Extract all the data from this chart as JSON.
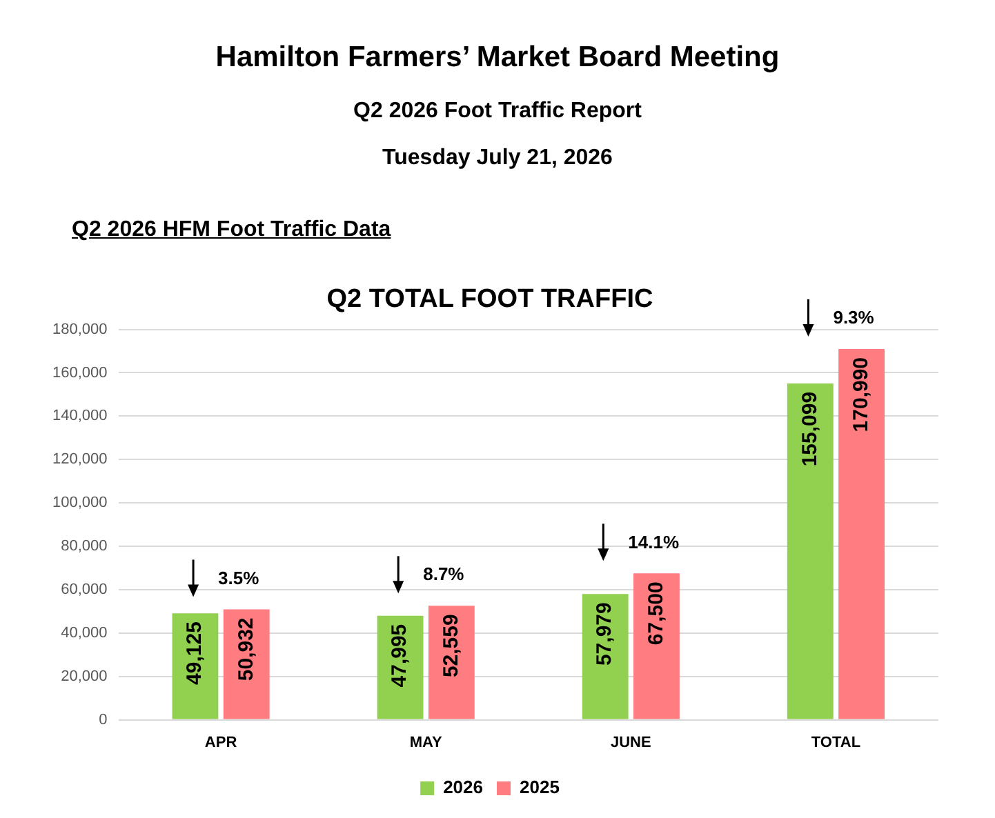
{
  "chart_data": {
    "type": "bar",
    "title": "Hamilton Farmers’ Market Board Meeting",
    "subtitle": "Q2 2026 Foot Traffic Report",
    "categories": [
      "APR",
      "MAY",
      "JUNE",
      "TOTAL"
    ],
    "series": [
      {
        "name": "2026",
        "color": "#92d050",
        "values": [
          49125,
          47995,
          57979,
          155099
        ],
        "value_labels": [
          "49,125",
          "47,995",
          "57,979",
          "155,099"
        ]
      },
      {
        "name": "2025",
        "color": "#ff7c80",
        "values": [
          50932,
          52559,
          67500,
          170990
        ],
        "value_labels": [
          "50,932",
          "52,559",
          "67,500",
          "170,990"
        ]
      }
    ],
    "ylim": [
      0,
      180000
    ],
    "yticks": [
      {
        "value": 0,
        "label": "0"
      },
      {
        "value": 20000,
        "label": "20,000"
      },
      {
        "value": 40000,
        "label": "40,000"
      },
      {
        "value": 60000,
        "label": "60,000"
      },
      {
        "value": 80000,
        "label": "80,000"
      },
      {
        "value": 100000,
        "label": "100,000"
      },
      {
        "value": 120000,
        "label": "120,000"
      },
      {
        "value": 140000,
        "label": "140,000"
      },
      {
        "value": 160000,
        "label": "160,000"
      },
      {
        "value": 180000,
        "label": "180,000"
      }
    ],
    "grid": "y",
    "legend": "bottom",
    "annotations": [
      "Tuesday July 21, 2026",
      "Q2 2026 HFM Foot Traffic Data",
      "Q2 TOTAL FOOT TRAFFIC",
      "3.5%",
      "8.7%",
      "14.1%",
      "9.3%"
    ]
  }
}
